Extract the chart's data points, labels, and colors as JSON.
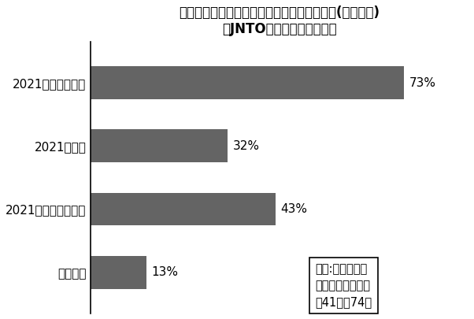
{
  "title_line1": "訪日旅行・路線の販売再開希望時期はいつか(複数回答)",
  "title_line2": "〈JNTOハノイ事務所調査〉",
  "categories": [
    "2021年桜シーズン",
    "2021年夏季",
    "2021年紅葉シーズン",
    "それ以降"
  ],
  "values": [
    73,
    32,
    43,
    13
  ],
  "bar_color": "#646464",
  "label_color": "#000000",
  "background_color": "#ffffff",
  "note_text": "回答:ベトナムの\n旅行会社・航空会\n社41社・74人",
  "xlim": [
    0,
    88
  ],
  "title_fontsize": 12,
  "label_fontsize": 11,
  "value_fontsize": 11,
  "note_fontsize": 10.5
}
